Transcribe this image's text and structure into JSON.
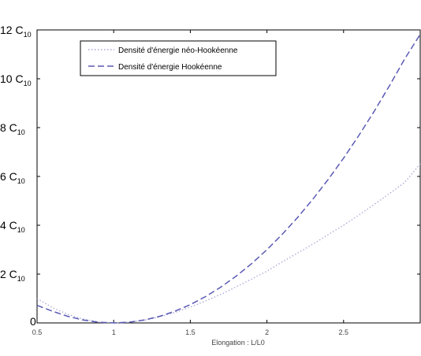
{
  "chart_data": {
    "type": "line",
    "xlabel": "Elongation : L/L0",
    "ylabel": "",
    "xlim": [
      0.5,
      3
    ],
    "ylim": [
      0,
      12
    ],
    "grid": false,
    "legend_position": "top-left",
    "x_ticks": [
      "0.5",
      "1",
      "1.5",
      "2",
      "2.5"
    ],
    "y_ticks": [
      {
        "value": 0,
        "label": "0",
        "unit": ""
      },
      {
        "value": 2,
        "label": "2 C",
        "unit": "10"
      },
      {
        "value": 4,
        "label": "4 C",
        "unit": "10"
      },
      {
        "value": 6,
        "label": "6 C",
        "unit": "10"
      },
      {
        "value": 8,
        "label": "8 C",
        "unit": "10"
      },
      {
        "value": 10,
        "label": "10 C",
        "unit": "10"
      },
      {
        "value": 12,
        "label": "12 C",
        "unit": "10"
      }
    ],
    "x": [
      0.5,
      0.6,
      0.7,
      0.8,
      0.9,
      1.0,
      1.1,
      1.2,
      1.3,
      1.4,
      1.5,
      1.6,
      1.7,
      1.8,
      1.9,
      2.0,
      2.1,
      2.2,
      2.3,
      2.4,
      2.5,
      2.6,
      2.7,
      2.8,
      2.9,
      3.0
    ],
    "series": [
      {
        "name": "Densité d'énergie néo-Hookéenne",
        "style": "dotted",
        "color": "#a8a8d8",
        "values": [
          1.0,
          0.63,
          0.35,
          0.16,
          0.04,
          0.0,
          0.03,
          0.11,
          0.25,
          0.43,
          0.65,
          0.9,
          1.17,
          1.48,
          1.8,
          2.12,
          2.5,
          2.86,
          3.23,
          3.62,
          4.0,
          4.42,
          4.85,
          5.3,
          5.76,
          6.52
        ]
      },
      {
        "name": "Densité d'énergie Hookéenne",
        "style": "dashed",
        "color": "#5a5ab4",
        "values": [
          0.72,
          0.48,
          0.27,
          0.12,
          0.03,
          0.0,
          0.03,
          0.12,
          0.27,
          0.48,
          0.75,
          1.08,
          1.47,
          1.92,
          2.43,
          3.0,
          3.63,
          4.32,
          5.07,
          5.88,
          6.75,
          7.68,
          8.67,
          9.72,
          10.83,
          11.82
        ]
      }
    ]
  }
}
